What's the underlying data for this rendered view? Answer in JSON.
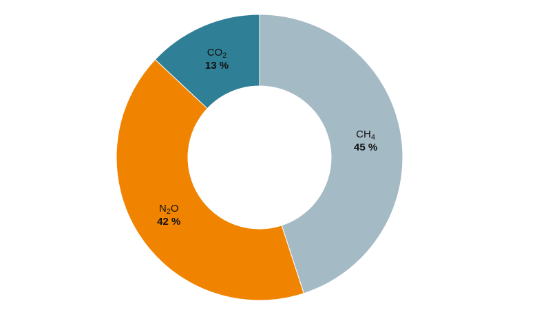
{
  "chart_data": {
    "type": "pie",
    "style": "donut",
    "slices": [
      {
        "key": "ch4",
        "name_base": "CH",
        "name_sub": "4",
        "value": 45,
        "label": "45 %",
        "color": "#a4bac4"
      },
      {
        "key": "n2o",
        "name_base": "N",
        "name_sub": "2",
        "name_after": "O",
        "value": 42,
        "label": "42 %",
        "color": "#f08300"
      },
      {
        "key": "co2",
        "name_base": "CO",
        "name_sub": "2",
        "value": 13,
        "label": "13 %",
        "color": "#2f7f96"
      }
    ],
    "legend": "none"
  }
}
